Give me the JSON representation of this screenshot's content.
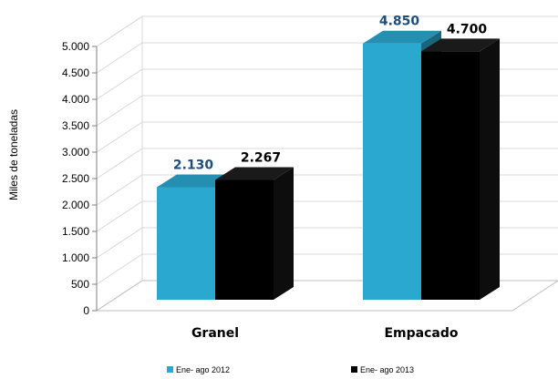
{
  "chart_data": {
    "type": "bar",
    "categories": [
      "Granel",
      "Empacado"
    ],
    "series": [
      {
        "name": "Ene- ago 2012",
        "values": [
          2130,
          4850
        ],
        "labels": [
          "2.130",
          "4.850"
        ],
        "color": "#2aa8cf",
        "label_color": "#1f4e79"
      },
      {
        "name": "Ene- ago 2013",
        "values": [
          2267,
          4700
        ],
        "labels": [
          "2.267",
          "4.700"
        ],
        "color": "#000000",
        "label_color": "#000000"
      }
    ],
    "title": "",
    "xlabel": "",
    "ylabel": "Miles de toneladas",
    "ylim": [
      0,
      5000
    ],
    "yticks": [
      0,
      500,
      1000,
      1500,
      2000,
      2500,
      3000,
      3500,
      4000,
      4500,
      5000
    ],
    "ytick_labels": [
      "0",
      "500",
      "1.000",
      "1.500",
      "2.000",
      "2.500",
      "3.000",
      "3.500",
      "4.000",
      "4.500",
      "5.000"
    ],
    "grid": true,
    "legend": "bottom",
    "style": "3d-bar"
  }
}
